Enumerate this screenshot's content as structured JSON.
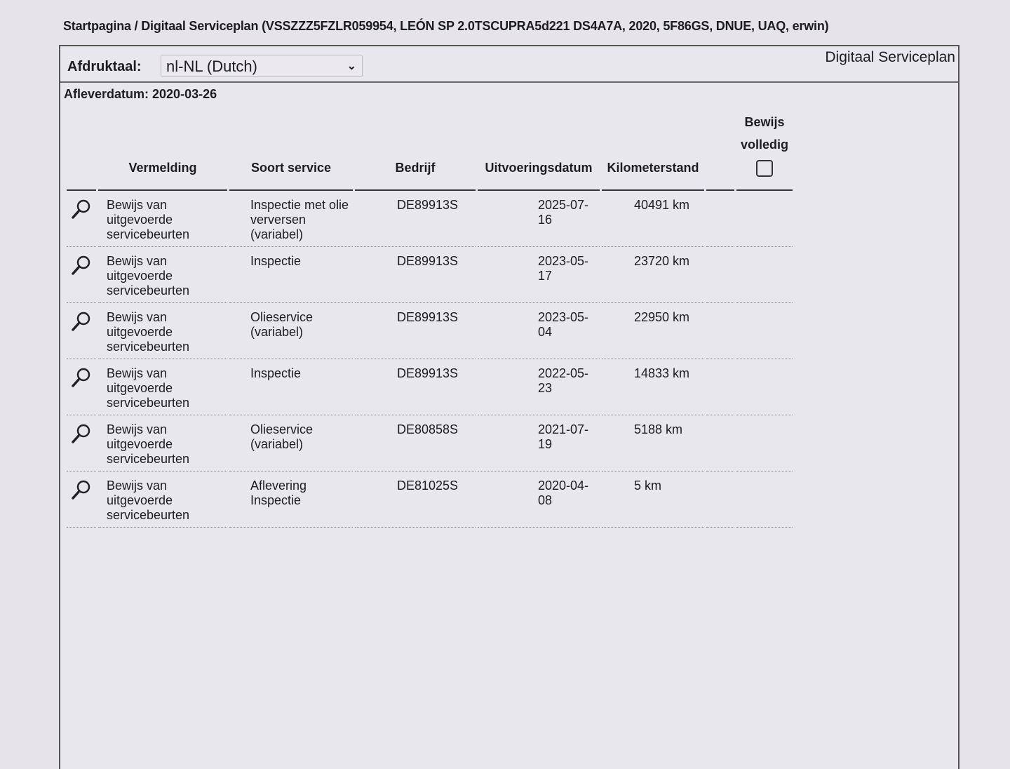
{
  "breadcrumb": "Startpagina / Digitaal Serviceplan (VSSZZZ5FZLR059954, LEÓN SP 2.0TSCUPRA5d221 DS4A7A, 2020, 5F86GS, DNUE, UAQ, erwin)",
  "toolbar": {
    "language_label": "Afdruktaal:",
    "language_value": "nl-NL (Dutch)",
    "title": "Digitaal Serviceplan"
  },
  "delivery_date": "Afleverdatum: 2020-03-26",
  "table": {
    "headers": {
      "vermelding": "Vermelding",
      "soort": "Soort service",
      "bedrijf": "Bedrijf",
      "datum": "Uitvoeringsdatum",
      "km": "Kilometerstand",
      "bewijs_1": "Bewijs",
      "bewijs_2": "volledig"
    },
    "bewijs_checked": false,
    "rows": [
      {
        "vermelding": "Bewijs van uitgevoerde servicebeurten",
        "soort": "Inspectie met olie verversen (variabel)",
        "bedrijf": "DE89913S",
        "datum": "2025-07-16",
        "km": "40491 km"
      },
      {
        "vermelding": "Bewijs van uitgevoerde servicebeurten",
        "soort": "Inspectie",
        "bedrijf": "DE89913S",
        "datum": "2023-05-17",
        "km": "23720 km"
      },
      {
        "vermelding": "Bewijs van uitgevoerde servicebeurten",
        "soort": "Olieservice (variabel)",
        "bedrijf": "DE89913S",
        "datum": "2023-05-04",
        "km": "22950 km"
      },
      {
        "vermelding": "Bewijs van uitgevoerde servicebeurten",
        "soort": "Inspectie",
        "bedrijf": "DE89913S",
        "datum": "2022-05-23",
        "km": "14833 km"
      },
      {
        "vermelding": "Bewijs van uitgevoerde servicebeurten",
        "soort": "Olieservice (variabel)",
        "bedrijf": "DE80858S",
        "datum": "2021-07-19",
        "km": "5188 km"
      },
      {
        "vermelding": "Bewijs van uitgevoerde servicebeurten",
        "soort": "Aflevering Inspectie",
        "bedrijf": "DE81025S",
        "datum": "2020-04-08",
        "km": "5 km"
      }
    ]
  }
}
